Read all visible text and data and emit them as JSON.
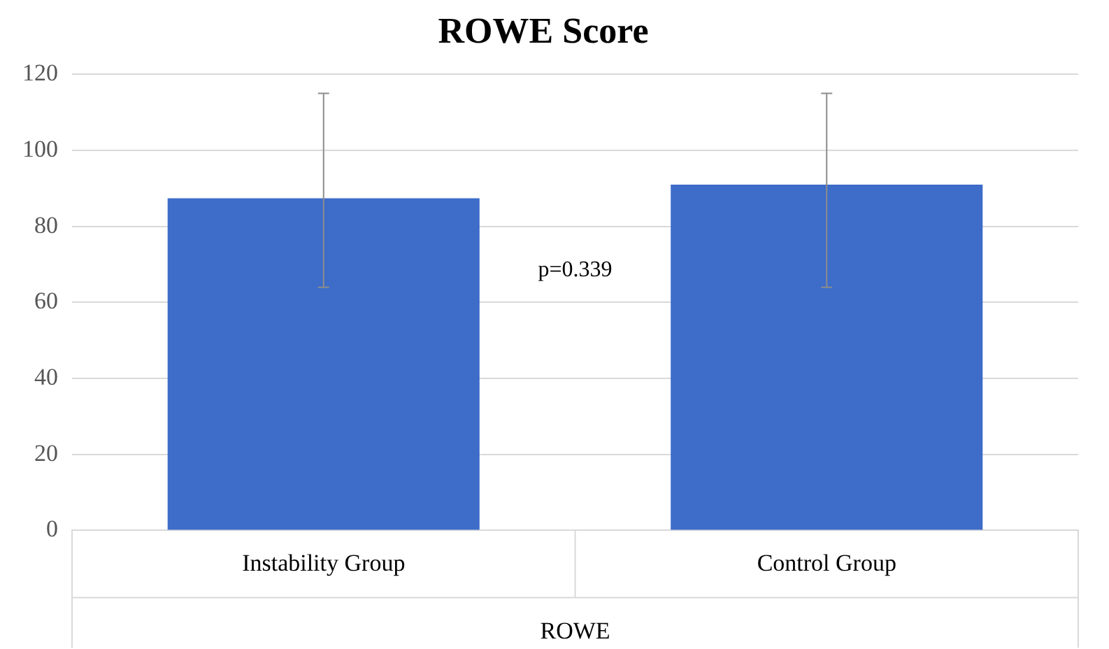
{
  "chart_data": {
    "type": "bar",
    "title": "ROWE Score",
    "xlabel": "ROWE",
    "categories": [
      "Instability Group",
      "Control Group"
    ],
    "values": [
      87.4,
      91
    ],
    "color": "#3d6cc9",
    "errors": [
      [
        64,
        115
      ],
      [
        64,
        115
      ]
    ],
    "ylim": [
      0,
      120
    ],
    "yticks": [
      0,
      20,
      40,
      60,
      80,
      100,
      120
    ],
    "grid": "y",
    "annotations": [
      "p=0.339"
    ]
  }
}
